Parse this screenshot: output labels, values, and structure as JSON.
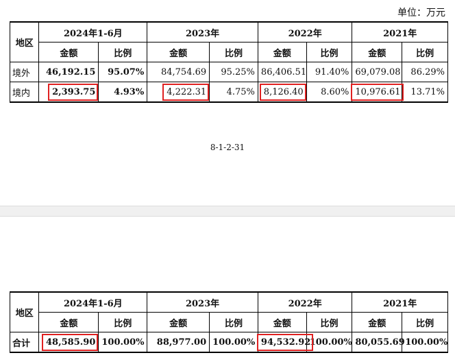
{
  "unit": "单位：万元",
  "table1": {
    "region_header": "地区",
    "periods": [
      "2024年1-6月",
      "2023年",
      "2022年",
      "2021年"
    ],
    "sub_headers": [
      "金额",
      "比例",
      "金额",
      "比例",
      "金额",
      "比例",
      "金额",
      "比例"
    ],
    "rows": [
      {
        "region": "境外",
        "cells": [
          "46,192.15",
          "95.07%",
          "84,754.69",
          "95.25%",
          "86,406.51",
          "91.40%",
          "69,079.08",
          "86.29%"
        ]
      },
      {
        "region": "境内",
        "cells": [
          "2,393.75",
          "4.93%",
          "4,222.31",
          "4.75%",
          "8,126.40",
          "8.60%",
          "10,976.61",
          "13.71%"
        ]
      }
    ]
  },
  "page_footer": "8-1-2-31",
  "table2": {
    "region_header": "地区",
    "periods": [
      "2024年1-6月",
      "2023年",
      "2022年",
      "2021年"
    ],
    "sub_headers": [
      "金额",
      "比例",
      "金额",
      "比例",
      "金额",
      "比例",
      "金额",
      "比例"
    ],
    "rows": [
      {
        "region": "合计",
        "cells": [
          "48,585.90",
          "100.00%",
          "88,977.00",
          "100.00%",
          "94,532.92",
          "100.00%",
          "80,055.69",
          "100.00%"
        ]
      }
    ]
  },
  "highlight_color": "#e02020"
}
